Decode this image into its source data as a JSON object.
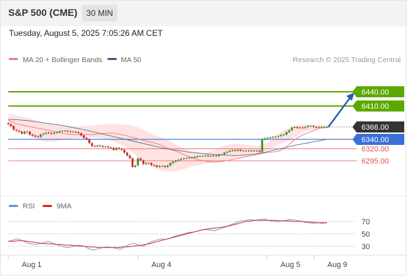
{
  "header": {
    "title": "S&P 500 (CME)",
    "timeframe": "30 MIN"
  },
  "timestamp": "Tuesday, August 5, 2025 7:05:26 AM CET",
  "legend": {
    "ma20": "MA 20 + Bollinger Bands",
    "ma50": "MA 50",
    "rsi": "RSI",
    "rsi_ma": "9MA"
  },
  "copyright": "Research © 2025 Trading Central",
  "colors": {
    "ma20": "#f08080",
    "ma50": "#3a5a8c",
    "bands": "#ffe0e0",
    "green": "#5aa800",
    "blue": "#3a6fd8",
    "red": "#e05050",
    "candle_up": "#3a8a1a",
    "candle_down": "#c62828",
    "arrow": "#2a5caa",
    "rsi": "#6a8fd0",
    "rsi_ma": "#dd2222"
  },
  "chart_data": [
    {
      "type": "candlestick",
      "x_ticks": [
        "Aug 1",
        "Aug 4",
        "Aug 5",
        "Aug 9"
      ],
      "current_price": "6366.00",
      "levels": [
        {
          "label": "6440.00",
          "value": 6440,
          "kind": "resistance"
        },
        {
          "label": "6410.00",
          "value": 6410,
          "kind": "resistance"
        },
        {
          "label": "6340.00",
          "value": 6340,
          "kind": "pivot"
        },
        {
          "label": "6320.00",
          "value": 6320,
          "kind": "support"
        },
        {
          "label": "6295.00",
          "value": 6295,
          "kind": "support"
        }
      ],
      "close": [
        6372,
        6368,
        6360,
        6358,
        6356,
        6352,
        6356,
        6356,
        6350,
        6348,
        6346,
        6345,
        6350,
        6352,
        6354,
        6353,
        6352,
        6354,
        6355,
        6357,
        6358,
        6358,
        6357,
        6356,
        6356,
        6355,
        6353,
        6348,
        6343,
        6340,
        6332,
        6326,
        6325,
        6327,
        6326,
        6324,
        6325,
        6323,
        6322,
        6318,
        6322,
        6320,
        6318,
        6312,
        6306,
        6300,
        6282,
        6285,
        6300,
        6296,
        6288,
        6290,
        6290,
        6286,
        6285,
        6282,
        6284,
        6284,
        6282,
        6285,
        6290,
        6293,
        6295,
        6297,
        6299,
        6300,
        6301,
        6302,
        6301,
        6303,
        6305,
        6305,
        6305,
        6306,
        6305,
        6305,
        6306,
        6305,
        6308,
        6308,
        6312,
        6314,
        6316,
        6317,
        6316,
        6318,
        6316,
        6316,
        6316,
        6316,
        6316,
        6316,
        6316,
        6314,
        6340,
        6342,
        6343,
        6344,
        6345,
        6346,
        6347,
        6349,
        6350,
        6355,
        6359,
        6365,
        6366,
        6364,
        6365,
        6364,
        6366,
        6368,
        6368,
        6366,
        6365,
        6366,
        6366,
        6366,
        6366
      ],
      "ma20": [
        6380,
        6376,
        6372,
        6370,
        6368,
        6366,
        6364,
        6362,
        6360,
        6358,
        6356,
        6354,
        6352,
        6351,
        6350,
        6350,
        6350,
        6350,
        6350,
        6351,
        6352,
        6353,
        6353,
        6352,
        6350,
        6348,
        6346,
        6343,
        6340,
        6337,
        6335,
        6333,
        6330,
        6326,
        6322,
        6318,
        6314,
        6310,
        6306,
        6302,
        6299,
        6296,
        6294,
        6293,
        6292,
        6293,
        6294,
        6296,
        6298,
        6300,
        6302,
        6304,
        6306,
        6308,
        6310,
        6312,
        6313,
        6314,
        6316,
        6322,
        6330,
        6338,
        6345,
        6350,
        6354,
        6358,
        6362,
        6364,
        6365
      ],
      "ma50": [
        6382,
        6381,
        6379,
        6376,
        6373,
        6370,
        6366,
        6362,
        6357,
        6352,
        6347,
        6342,
        6337,
        6332,
        6327,
        6322,
        6318,
        6315,
        6312,
        6310,
        6308,
        6307,
        6306,
        6307,
        6309,
        6313,
        6318,
        6323,
        6328,
        6332,
        6336,
        6340
      ],
      "upper_band": [
        6394,
        6391,
        6387,
        6385,
        6380,
        6376,
        6373,
        6371,
        6370,
        6368,
        6367,
        6368,
        6369,
        6370,
        6371,
        6372,
        6372,
        6371,
        6370,
        6366,
        6360,
        6353,
        6347,
        6341,
        6335,
        6327,
        6321,
        6316,
        6313,
        6312,
        6315,
        6322,
        6328,
        6331,
        6331,
        6329,
        6327,
        6327,
        6331,
        6342,
        6354,
        6362,
        6367,
        6370,
        6371,
        6370,
        6370,
        6370
      ],
      "lower_band": [
        6366,
        6360,
        6353,
        6346,
        6340,
        6336,
        6335,
        6337,
        6340,
        6342,
        6343,
        6344,
        6344,
        6342,
        6338,
        6332,
        6326,
        6315,
        6300,
        6289,
        6280,
        6275,
        6272,
        6273,
        6276,
        6281,
        6285,
        6288,
        6291,
        6294,
        6296,
        6299,
        6302,
        6304,
        6306,
        6310,
        6318,
        6326,
        6332,
        6339,
        6349,
        6356,
        6360,
        6363,
        6364
      ],
      "projection": {
        "from": 6366,
        "to": 6440
      }
    },
    {
      "type": "line",
      "name": "RSI",
      "y_ticks": [
        70,
        50,
        30
      ],
      "ylim": [
        10,
        80
      ],
      "rsi": [
        38,
        40,
        42,
        40,
        36,
        34,
        33,
        34,
        36,
        38,
        35,
        32,
        30,
        28,
        29,
        31,
        32,
        30,
        26,
        24,
        26,
        28,
        29,
        28,
        27,
        25,
        30,
        33,
        35,
        32,
        30,
        34,
        38,
        40,
        42,
        41,
        43,
        46,
        48,
        50,
        52,
        53,
        54,
        56,
        57,
        56,
        55,
        58,
        60,
        63,
        66,
        69,
        71,
        72,
        73,
        72,
        73,
        74,
        72,
        70,
        70,
        71,
        72,
        73,
        72,
        71,
        69,
        68,
        67,
        68,
        67,
        68
      ],
      "rsi_ma": [
        38,
        38,
        39,
        39,
        38,
        37,
        36,
        35,
        34,
        34,
        33,
        33,
        32,
        32,
        31,
        30,
        30,
        29,
        29,
        28,
        28,
        28,
        28,
        28,
        29,
        29,
        30,
        31,
        32,
        33,
        35,
        37,
        39,
        41,
        43,
        45,
        47,
        49,
        51,
        53,
        55,
        57,
        58,
        59,
        60,
        61,
        62,
        64,
        66,
        68,
        70,
        71,
        72,
        72,
        72,
        72,
        72,
        71,
        71,
        71,
        70,
        70,
        70,
        69,
        69,
        68,
        68,
        68
      ]
    }
  ]
}
